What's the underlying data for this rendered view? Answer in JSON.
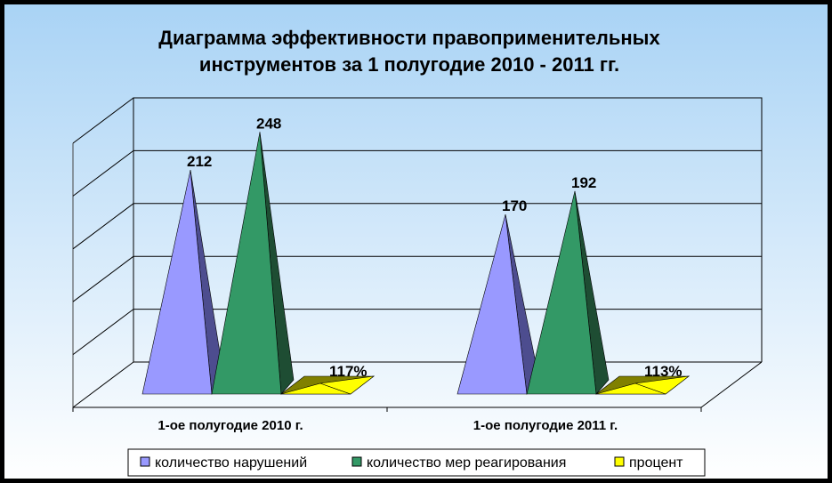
{
  "chart_data": {
    "type": "bar",
    "style": "3d-pyramid",
    "title_line1": "Диаграмма эффективности правоприменительных",
    "title_line2": "инструментов за 1 полугодие 2010 - 2011 гг.",
    "categories": [
      "1-ое полугодие 2010 г.",
      "1-ое полугодие 2011 г."
    ],
    "series": [
      {
        "name": "количество нарушений",
        "values": [
          212,
          170
        ],
        "labels": [
          "212",
          "170"
        ],
        "color": "#9999FF",
        "side_color": "#4D4D8F"
      },
      {
        "name": "количество мер реагирования",
        "values": [
          248,
          192
        ],
        "labels": [
          "248",
          "192"
        ],
        "color": "#339966",
        "side_color": "#1E4D33"
      },
      {
        "name": "процент",
        "values": [
          117,
          113
        ],
        "labels": [
          "117%",
          "113%"
        ],
        "color": "#FFFF00",
        "side_color": "#808000",
        "flat": true
      }
    ],
    "ylim": [
      0,
      250
    ],
    "grid": true,
    "legend_position": "bottom",
    "background_gradient": [
      "#A9D3F5",
      "#FFFFFF"
    ]
  }
}
